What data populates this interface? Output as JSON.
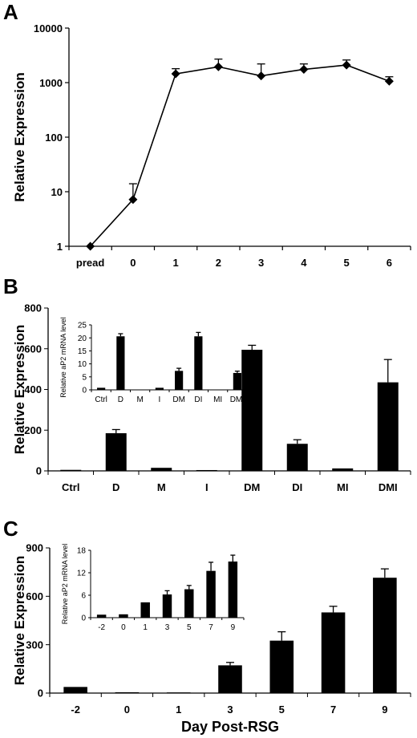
{
  "panels": {
    "a": "A",
    "b": "B",
    "c": "C"
  },
  "chart_data": [
    {
      "type": "line",
      "panel": "A",
      "scale": "log",
      "ylabel": "Relative Expression",
      "xlabel": "",
      "categories": [
        "pread",
        "0",
        "1",
        "2",
        "3",
        "4",
        "5",
        "6"
      ],
      "values": [
        1,
        7.2,
        1450,
        1950,
        1330,
        1750,
        2100,
        1060
      ],
      "errors": [
        0,
        14,
        1800,
        2700,
        2200,
        2200,
        2600,
        1280
      ],
      "yticks": [
        "1",
        "10",
        "100",
        "1000",
        "10000"
      ],
      "ylim": [
        1,
        10000
      ]
    },
    {
      "type": "bar",
      "panel": "B",
      "ylabel": "Relative Expression",
      "categories": [
        "Ctrl",
        "D",
        "M",
        "I",
        "DM",
        "DI",
        "MI",
        "DMI"
      ],
      "values": [
        5,
        185,
        15,
        4,
        595,
        133,
        12,
        435
      ],
      "errors": [
        0,
        18,
        0,
        0,
        22,
        20,
        0,
        112
      ],
      "yticks": [
        "0",
        "200",
        "400",
        "600",
        "800"
      ],
      "ylim": [
        0,
        800
      ],
      "inset": {
        "type": "bar",
        "ylabel": "Relative aP2 mRNA level",
        "categories": [
          "Ctrl",
          "D",
          "M",
          "I",
          "DM",
          "DI",
          "MI",
          "DMI"
        ],
        "values": [
          0.8,
          20.6,
          0.1,
          0.8,
          7.3,
          20.6,
          0.1,
          6.5
        ],
        "errors": [
          0,
          1,
          0,
          0,
          1,
          1.5,
          0,
          0.7
        ],
        "yticks": [
          "0",
          "5",
          "10",
          "15",
          "20",
          "25"
        ],
        "ylim": [
          0,
          25
        ]
      }
    },
    {
      "type": "bar",
      "panel": "C",
      "ylabel": "Relative Expression",
      "xlabel": "Day Post-RSG",
      "categories": [
        "-2",
        "0",
        "1",
        "3",
        "5",
        "7",
        "9"
      ],
      "values": [
        38,
        5,
        4,
        172,
        325,
        500,
        715
      ],
      "errors": [
        0,
        0,
        0,
        18,
        55,
        38,
        55
      ],
      "yticks": [
        "0",
        "300",
        "600",
        "900"
      ],
      "ylim": [
        0,
        900
      ],
      "inset": {
        "type": "bar",
        "ylabel": "Relative aP2 mRNA level",
        "categories": [
          "-2",
          "0",
          "1",
          "3",
          "5",
          "7",
          "9"
        ],
        "values": [
          0.8,
          0.9,
          4.1,
          6.2,
          7.6,
          12.5,
          15
        ],
        "errors": [
          0,
          0,
          0,
          1,
          1,
          2.3,
          1.7
        ],
        "yticks": [
          "0",
          "6",
          "12",
          "18"
        ],
        "ylim": [
          0,
          18
        ]
      }
    }
  ]
}
